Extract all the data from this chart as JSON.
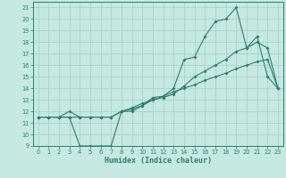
{
  "xlabel": "Humidex (Indice chaleur)",
  "x": [
    0,
    1,
    2,
    3,
    4,
    5,
    6,
    7,
    8,
    9,
    10,
    11,
    12,
    13,
    14,
    15,
    16,
    17,
    18,
    19,
    20,
    21,
    22,
    23
  ],
  "line_peak": [
    11.5,
    11.5,
    11.5,
    11.5,
    9.0,
    9.0,
    9.0,
    9.0,
    12.0,
    12.0,
    12.5,
    13.2,
    13.3,
    14.0,
    16.5,
    16.7,
    18.5,
    19.8,
    20.0,
    21.0,
    17.5,
    18.5,
    15.0,
    14.0
  ],
  "line_mid": [
    11.5,
    11.5,
    11.5,
    12.0,
    11.5,
    11.5,
    11.5,
    11.5,
    12.0,
    12.2,
    12.5,
    13.0,
    13.2,
    13.5,
    14.2,
    15.0,
    15.5,
    16.0,
    16.5,
    17.2,
    17.5,
    18.0,
    17.5,
    14.0
  ],
  "line_base": [
    11.5,
    11.5,
    11.5,
    11.5,
    11.5,
    11.5,
    11.5,
    11.5,
    12.0,
    12.3,
    12.7,
    13.0,
    13.3,
    13.7,
    14.0,
    14.3,
    14.7,
    15.0,
    15.3,
    15.7,
    16.0,
    16.3,
    16.5,
    14.0
  ],
  "line_color": "#2e7d6e",
  "bg_color": "#c5e8e0",
  "grid_color": "#a5cec6",
  "ylim": [
    9,
    21.5
  ],
  "xlim": [
    -0.5,
    23.5
  ],
  "yticks": [
    9,
    10,
    11,
    12,
    13,
    14,
    15,
    16,
    17,
    18,
    19,
    20,
    21
  ],
  "xticks": [
    0,
    1,
    2,
    3,
    4,
    5,
    6,
    7,
    8,
    9,
    10,
    11,
    12,
    13,
    14,
    15,
    16,
    17,
    18,
    19,
    20,
    21,
    22,
    23
  ]
}
